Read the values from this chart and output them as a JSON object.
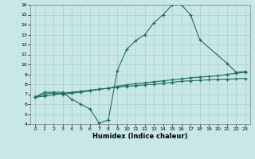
{
  "xlabel": "Humidex (Indice chaleur)",
  "background_color": "#c8e8e8",
  "grid_color": "#a8cccc",
  "line_color": "#1e6b5e",
  "xlim": [
    -0.5,
    23.5
  ],
  "ylim": [
    4,
    16
  ],
  "xticks": [
    0,
    1,
    2,
    3,
    4,
    5,
    6,
    7,
    8,
    9,
    10,
    11,
    12,
    13,
    14,
    15,
    16,
    17,
    18,
    19,
    20,
    21,
    22,
    23
  ],
  "yticks": [
    4,
    5,
    6,
    7,
    8,
    9,
    10,
    11,
    12,
    13,
    14,
    15,
    16
  ],
  "line1_x": [
    0,
    1,
    2,
    3,
    4,
    5,
    6,
    7,
    8,
    9,
    10,
    11,
    12,
    13,
    14,
    15,
    16,
    17,
    18,
    21,
    22,
    23
  ],
  "line1_y": [
    6.7,
    7.2,
    7.2,
    7.2,
    6.5,
    6.0,
    5.5,
    4.1,
    4.4,
    9.4,
    11.5,
    12.4,
    13.0,
    14.2,
    15.0,
    16.0,
    16.0,
    15.0,
    12.5,
    10.1,
    9.2,
    9.3
  ],
  "line2_x": [
    0,
    1,
    2,
    3,
    4,
    5,
    6,
    7,
    8,
    9,
    10,
    11,
    12,
    13,
    14,
    15,
    16,
    17,
    18,
    19,
    20,
    21,
    22,
    23
  ],
  "line2_y": [
    6.7,
    7.0,
    7.15,
    7.0,
    7.1,
    7.2,
    7.35,
    7.5,
    7.6,
    7.8,
    7.95,
    8.05,
    8.15,
    8.25,
    8.35,
    8.45,
    8.55,
    8.65,
    8.72,
    8.78,
    8.85,
    9.0,
    9.1,
    9.2
  ],
  "line3_x": [
    0,
    1,
    2,
    3,
    4,
    5,
    6,
    7,
    8,
    9,
    10,
    11,
    12,
    13,
    14,
    15,
    16,
    17,
    18,
    19,
    20,
    21,
    22,
    23
  ],
  "line3_y": [
    6.7,
    6.8,
    6.95,
    7.1,
    7.2,
    7.3,
    7.4,
    7.5,
    7.6,
    7.7,
    7.8,
    7.85,
    7.95,
    8.0,
    8.1,
    8.2,
    8.3,
    8.35,
    8.4,
    8.45,
    8.5,
    8.52,
    8.55,
    8.58
  ]
}
